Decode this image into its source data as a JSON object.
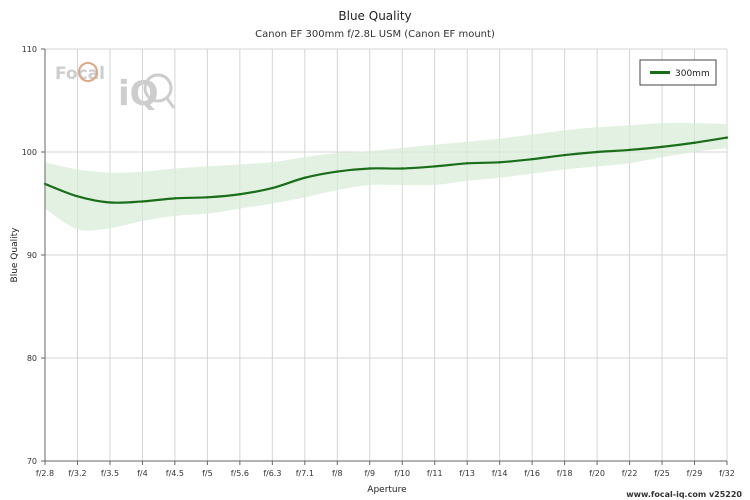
{
  "chart_data": {
    "type": "line",
    "title": "Blue Quality",
    "subtitle": "Canon EF 300mm f/2.8L USM (Canon EF mount)",
    "xlabel": "Aperture",
    "ylabel": "Blue Quality",
    "categories": [
      "f/2.8",
      "f/3.2",
      "f/3.5",
      "f/4",
      "f/4.5",
      "f/5",
      "f/5.6",
      "f/6.3",
      "f/7.1",
      "f/8",
      "f/9",
      "f/10",
      "f/11",
      "f/13",
      "f/14",
      "f/16",
      "f/18",
      "f/20",
      "f/22",
      "f/25",
      "f/29",
      "f/32"
    ],
    "ylim": [
      70,
      110
    ],
    "yticks": [
      70,
      80,
      90,
      100,
      110
    ],
    "grid": true,
    "legend_position": "top-right",
    "series": [
      {
        "name": "300mm",
        "color": "#1a6e1a",
        "band_color": "#d9ecd9",
        "values": [
          96.9,
          95.7,
          95.1,
          95.2,
          95.5,
          95.6,
          95.9,
          96.5,
          97.5,
          98.1,
          98.4,
          98.4,
          98.6,
          98.9,
          99.0,
          99.3,
          99.7,
          100.0,
          100.2,
          100.5,
          100.9,
          101.4
        ],
        "upper": [
          99.0,
          98.3,
          98.0,
          98.1,
          98.4,
          98.6,
          98.8,
          99.0,
          99.5,
          99.9,
          100.1,
          100.4,
          100.7,
          101.0,
          101.3,
          101.7,
          102.1,
          102.4,
          102.6,
          102.8,
          102.8,
          102.7
        ],
        "lower": [
          94.5,
          92.5,
          92.6,
          93.3,
          93.8,
          94.0,
          94.5,
          95.0,
          95.6,
          96.3,
          96.8,
          96.8,
          96.8,
          97.2,
          97.5,
          97.9,
          98.3,
          98.6,
          98.9,
          99.5,
          100.0,
          100.4
        ]
      }
    ]
  },
  "logo": {
    "text": "Focal",
    "text2": "iQ",
    "colors": [
      "#c8c8c8",
      "#d8a07a"
    ]
  },
  "footer": {
    "text": "www.focal-iq.com  v25220"
  }
}
